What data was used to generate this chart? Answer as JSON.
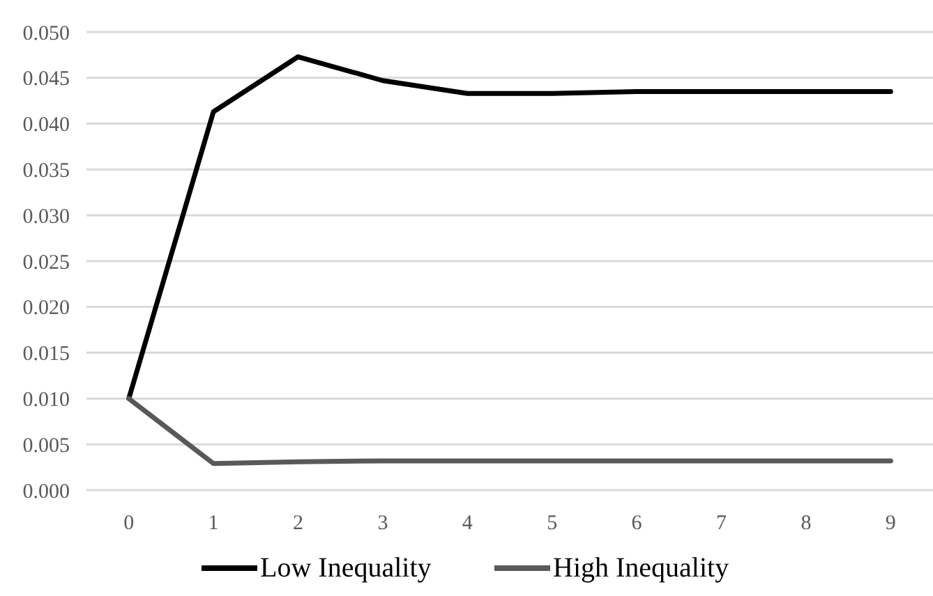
{
  "chart_data": {
    "type": "line",
    "categories": [
      "0",
      "1",
      "2",
      "3",
      "4",
      "5",
      "6",
      "7",
      "8",
      "9"
    ],
    "series": [
      {
        "name": "Low Inequality",
        "color": "#000000",
        "values": [
          0.01,
          0.0413,
          0.0473,
          0.0447,
          0.0433,
          0.0433,
          0.0435,
          0.0435,
          0.0435,
          0.0435
        ]
      },
      {
        "name": "High Inequality",
        "color": "#595959",
        "values": [
          0.01,
          0.0029,
          0.0031,
          0.0032,
          0.0032,
          0.0032,
          0.0032,
          0.0032,
          0.0032,
          0.0032
        ]
      }
    ],
    "ylim": [
      0,
      0.05
    ],
    "yticks": [
      {
        "value": 0,
        "label": "0.000"
      },
      {
        "value": 0.005,
        "label": "0.005"
      },
      {
        "value": 0.01,
        "label": "0.010"
      },
      {
        "value": 0.015,
        "label": "0.015"
      },
      {
        "value": 0.02,
        "label": "0.020"
      },
      {
        "value": 0.025,
        "label": "0.025"
      },
      {
        "value": 0.03,
        "label": "0.030"
      },
      {
        "value": 0.035,
        "label": "0.035"
      },
      {
        "value": 0.04,
        "label": "0.040"
      },
      {
        "value": 0.045,
        "label": "0.045"
      },
      {
        "value": 0.05,
        "label": "0.050"
      }
    ],
    "grid": "y",
    "legend": "bottom",
    "marker": "none",
    "line_style": "solid"
  }
}
